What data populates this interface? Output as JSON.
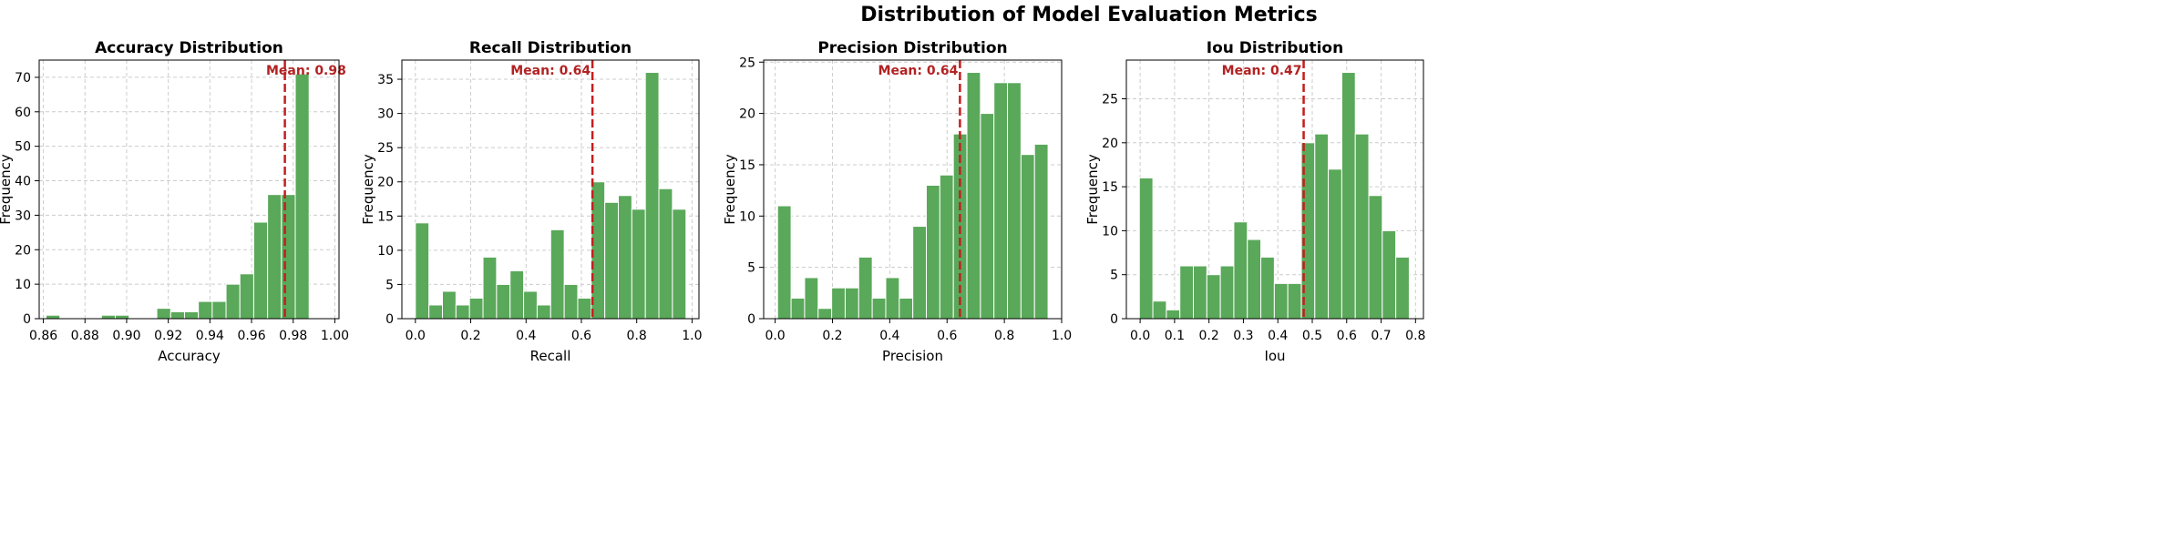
{
  "figure": {
    "suptitle": "Distribution of Model Evaluation Metrics"
  },
  "colors": {
    "bar": "#5aa85a",
    "bar_edge": "#ffffff",
    "mean_line": "#c41e1e",
    "mean_text": "#b22222",
    "grid": "#cccccc"
  },
  "chart_data": [
    {
      "type": "bar",
      "title": "Accuracy Distribution",
      "xlabel": "Accuracy",
      "ylabel": "Frequency",
      "xlim": [
        0.858,
        1.002
      ],
      "ylim": [
        0,
        75
      ],
      "xticks": [
        0.86,
        0.88,
        0.9,
        0.92,
        0.94,
        0.96,
        0.98,
        1.0
      ],
      "xtick_labels": [
        "0.86",
        "0.88",
        "0.90",
        "0.92",
        "0.94",
        "0.96",
        "0.98",
        "1.00"
      ],
      "yticks": [
        0,
        10,
        20,
        30,
        40,
        50,
        60,
        70
      ],
      "ytick_labels": [
        "0",
        "10",
        "20",
        "30",
        "40",
        "50",
        "60",
        "70"
      ],
      "bin_start": 0.8613,
      "bin_width": 0.00665,
      "values": [
        1,
        0,
        0,
        0,
        1,
        1,
        0,
        0,
        3,
        2,
        2,
        5,
        5,
        10,
        13,
        28,
        36,
        36,
        71
      ],
      "mean": 0.976,
      "mean_label": "Mean: 0.98",
      "grid": true
    },
    {
      "type": "bar",
      "title": "Recall Distribution",
      "xlabel": "Recall",
      "ylabel": "Frequency",
      "xlim": [
        -0.0488,
        1.025
      ],
      "ylim": [
        0,
        37.8
      ],
      "xticks": [
        0.0,
        0.2,
        0.4,
        0.6,
        0.8,
        1.0
      ],
      "xtick_labels": [
        "0.0",
        "0.2",
        "0.4",
        "0.6",
        "0.8",
        "1.0"
      ],
      "yticks": [
        0,
        5,
        10,
        15,
        20,
        25,
        30,
        35
      ],
      "ytick_labels": [
        "0",
        "5",
        "10",
        "15",
        "20",
        "25",
        "30",
        "35"
      ],
      "bin_start": 0.0,
      "bin_width": 0.0489,
      "values": [
        14,
        2,
        4,
        2,
        3,
        9,
        5,
        7,
        4,
        2,
        13,
        5,
        3,
        20,
        17,
        18,
        16,
        36,
        19,
        16
      ],
      "mean": 0.64,
      "mean_label": "Mean: 0.64",
      "grid": true
    },
    {
      "type": "bar",
      "title": "Precision Distribution",
      "xlabel": "Precision",
      "ylabel": "Frequency",
      "xlim": [
        -0.04,
        1.0
      ],
      "ylim": [
        0,
        25.2
      ],
      "xticks": [
        0.0,
        0.2,
        0.4,
        0.6,
        0.8,
        1.0
      ],
      "xtick_labels": [
        "0.0",
        "0.2",
        "0.4",
        "0.6",
        "0.8",
        "1.0"
      ],
      "yticks": [
        0,
        5,
        10,
        15,
        20,
        25
      ],
      "ytick_labels": [
        "0",
        "5",
        "10",
        "15",
        "20",
        "25"
      ],
      "bin_start": 0.0085,
      "bin_width": 0.0472,
      "values": [
        11,
        2,
        4,
        1,
        3,
        3,
        6,
        2,
        4,
        2,
        9,
        13,
        14,
        18,
        24,
        20,
        23,
        23,
        16,
        17
      ],
      "mean": 0.645,
      "mean_label": "Mean: 0.64",
      "grid": true
    },
    {
      "type": "bar",
      "title": "Iou Distribution",
      "xlabel": "Iou",
      "ylabel": "Frequency",
      "xlim": [
        -0.04,
        0.823
      ],
      "ylim": [
        0,
        29.4
      ],
      "xticks": [
        0.0,
        0.1,
        0.2,
        0.3,
        0.4,
        0.5,
        0.6,
        0.7,
        0.8
      ],
      "xtick_labels": [
        "0.0",
        "0.1",
        "0.2",
        "0.3",
        "0.4",
        "0.5",
        "0.6",
        "0.7",
        "0.8"
      ],
      "yticks": [
        0,
        5,
        10,
        15,
        20,
        25
      ],
      "ytick_labels": [
        "0",
        "5",
        "10",
        "15",
        "20",
        "25"
      ],
      "bin_start": -0.0022,
      "bin_width": 0.0392,
      "values": [
        16,
        2,
        1,
        6,
        6,
        5,
        6,
        11,
        9,
        7,
        4,
        4,
        20,
        21,
        17,
        28,
        21,
        14,
        10,
        7
      ],
      "mean": 0.475,
      "mean_label": "Mean: 0.47",
      "grid": true
    }
  ]
}
